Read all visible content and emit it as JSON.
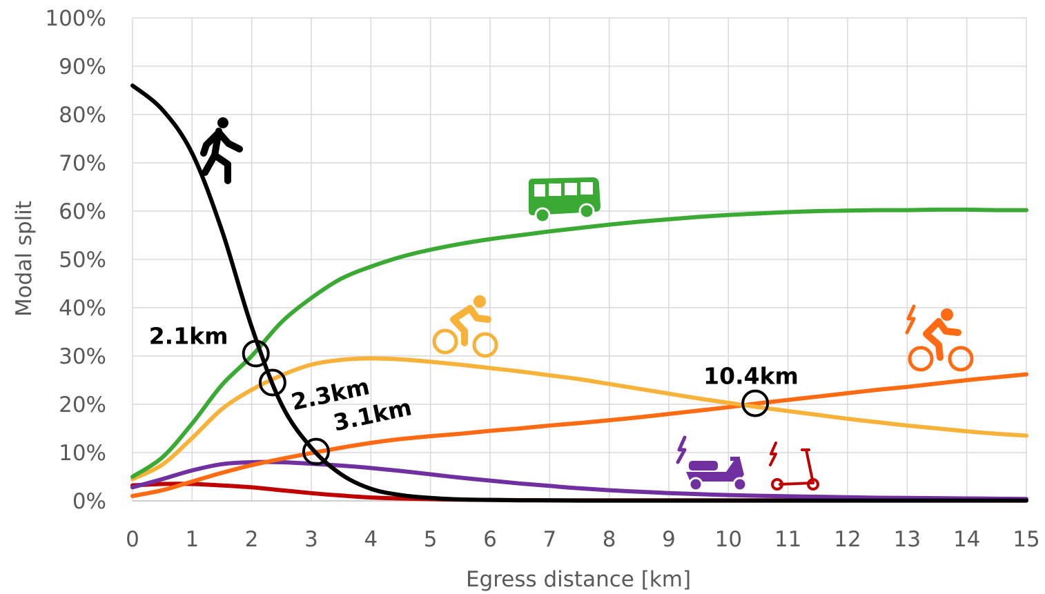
{
  "chart_data": {
    "type": "line",
    "xlabel": "Egress distance [km]",
    "ylabel": "Modal split",
    "xlim": [
      0,
      15
    ],
    "ylim": [
      0,
      100
    ],
    "x_ticks": [
      "0",
      "1",
      "2",
      "3",
      "4",
      "5",
      "6",
      "7",
      "8",
      "9",
      "10",
      "11",
      "12",
      "13",
      "14",
      "15"
    ],
    "y_ticks": [
      "0%",
      "10%",
      "20%",
      "30%",
      "40%",
      "50%",
      "60%",
      "70%",
      "80%",
      "90%",
      "100%"
    ],
    "grid": true,
    "legend": "none",
    "x": [
      0,
      0.5,
      1,
      1.5,
      2,
      2.5,
      3,
      3.5,
      4,
      4.5,
      5,
      5.5,
      6,
      6.5,
      7,
      7.5,
      8,
      8.5,
      9,
      9.5,
      10,
      10.5,
      11,
      11.5,
      12,
      12.5,
      13,
      13.5,
      14,
      14.5,
      15
    ],
    "series": [
      {
        "icon": "walking-person-icon",
        "color": "#000000",
        "values": [
          86,
          81,
          72,
          56,
          36,
          20,
          11,
          5.5,
          2.5,
          1.2,
          0.6,
          0.3,
          0.2,
          0.1,
          0.1,
          0.05,
          0.05,
          0.05,
          0.05,
          0.05,
          0.05,
          0.05,
          0.05,
          0.05,
          0.05,
          0.05,
          0.05,
          0.05,
          0.05,
          0.05,
          0.05
        ]
      },
      {
        "icon": "bus-icon",
        "color": "#3aaa35",
        "values": [
          5,
          9,
          16,
          24,
          30,
          37,
          42,
          46,
          48.5,
          50.5,
          52,
          53.2,
          54.2,
          55,
          55.8,
          56.5,
          57.2,
          57.8,
          58.3,
          58.8,
          59.2,
          59.5,
          59.8,
          60,
          60.1,
          60.2,
          60.2,
          60.3,
          60.3,
          60.2,
          60.2
        ]
      },
      {
        "icon": "bicycle-icon",
        "color": "#f7b239",
        "values": [
          4.5,
          7.5,
          13,
          19,
          23,
          26,
          28.2,
          29.2,
          29.5,
          29.3,
          28.8,
          28.2,
          27.5,
          26.8,
          26,
          25.2,
          24.2,
          23.2,
          22.2,
          21.2,
          20.3,
          19.4,
          18.6,
          17.8,
          17,
          16.3,
          15.6,
          15,
          14.4,
          13.9,
          13.5
        ]
      },
      {
        "icon": "e-bike-icon",
        "color": "#ff6a13",
        "values": [
          1,
          2.2,
          4,
          5.8,
          7.4,
          8.7,
          9.9,
          11,
          12,
          12.8,
          13.4,
          13.9,
          14.5,
          15,
          15.6,
          16.1,
          16.7,
          17.3,
          18,
          18.7,
          19.4,
          20.2,
          20.9,
          21.6,
          22.3,
          23,
          23.6,
          24.3,
          25,
          25.6,
          26.2
        ]
      },
      {
        "icon": "e-moped-icon",
        "color": "#7030a0",
        "values": [
          2.8,
          4.5,
          6.3,
          7.6,
          8,
          8,
          7.7,
          7.3,
          6.8,
          6.2,
          5.5,
          4.8,
          4.2,
          3.6,
          3.1,
          2.6,
          2.2,
          1.9,
          1.6,
          1.4,
          1.2,
          1.05,
          0.95,
          0.85,
          0.75,
          0.65,
          0.6,
          0.55,
          0.5,
          0.45,
          0.4
        ]
      },
      {
        "icon": "e-scooter-icon",
        "color": "#c00000",
        "values": [
          3.2,
          3.5,
          3.5,
          3.2,
          2.8,
          2.2,
          1.6,
          1.1,
          0.7,
          0.5,
          0.35,
          0.25,
          0.2,
          0.15,
          0.12,
          0.1,
          0.1,
          0.1,
          0.1,
          0.1,
          0.1,
          0.1,
          0.1,
          0.1,
          0.1,
          0.1,
          0.1,
          0.1,
          0.1,
          0.1,
          0.1
        ]
      }
    ],
    "annotations": [
      {
        "text": "2.1km",
        "x": 2.07,
        "y": 30.5
      },
      {
        "text": "2.3km",
        "x": 2.35,
        "y": 24.5
      },
      {
        "text": "3.1km",
        "x": 3.08,
        "y": 10.2
      },
      {
        "text": "10.4km",
        "x": 10.45,
        "y": 20.2
      }
    ]
  }
}
